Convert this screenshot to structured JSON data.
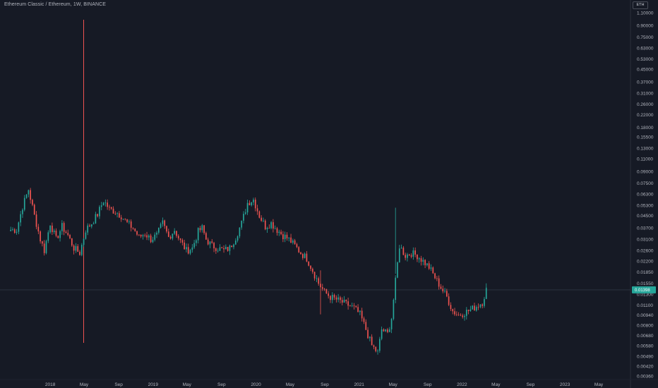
{
  "header": {
    "title": "Ethereum Classic / Ethereum, 1W, BINANCE",
    "currency": "ETH"
  },
  "colors": {
    "background": "#161a25",
    "up": "#26a69a",
    "down": "#ef5350",
    "grid": "#1e2230",
    "text": "#b2b5be"
  },
  "chart_data": {
    "type": "candlestick",
    "title": "Ethereum Classic / Ethereum, 1W, BINANCE",
    "scale": "log",
    "grid": false,
    "ylim": [
      0.0036,
      1.2
    ],
    "y_ticks": [
      "1.10000",
      "0.90000",
      "0.75000",
      "0.63000",
      "0.53000",
      "0.45000",
      "0.37000",
      "0.31000",
      "0.26000",
      "0.22000",
      "0.18000",
      "0.15500",
      "0.13000",
      "0.11000",
      "0.09000",
      "0.07500",
      "0.06300",
      "0.05300",
      "0.04500",
      "0.03700",
      "0.03100",
      "0.02600",
      "0.02200",
      "0.01850",
      "0.01550",
      "0.01300",
      "0.01100",
      "0.00940",
      "0.00800",
      "0.00680",
      "0.00580",
      "0.00490",
      "0.00420",
      "0.00360"
    ],
    "x_ticks": [
      "2018",
      "May",
      "Sep",
      "2019",
      "May",
      "Sep",
      "2020",
      "May",
      "Sep",
      "2021",
      "May",
      "Sep",
      "2022",
      "May",
      "Sep",
      "2023",
      "May"
    ],
    "x_range": [
      "2017-08-01",
      "2023-07-20"
    ],
    "last_price": 0.01398,
    "anchors": [
      [
        "2017-08-14",
        0.036
      ],
      [
        "2017-09-04",
        0.036
      ],
      [
        "2017-09-25",
        0.052
      ],
      [
        "2017-10-16",
        0.068
      ],
      [
        "2017-11-06",
        0.045
      ],
      [
        "2017-11-27",
        0.031
      ],
      [
        "2017-12-11",
        0.026
      ],
      [
        "2018-01-01",
        0.04
      ],
      [
        "2018-01-22",
        0.031
      ],
      [
        "2018-02-12",
        0.038
      ],
      [
        "2018-03-05",
        0.033
      ],
      [
        "2018-03-26",
        0.027
      ],
      [
        "2018-04-16",
        0.025
      ],
      [
        "2018-05-07",
        0.036
      ],
      [
        "2018-05-28",
        0.04
      ],
      [
        "2018-06-18",
        0.046
      ],
      [
        "2018-07-09",
        0.057
      ],
      [
        "2018-07-30",
        0.05
      ],
      [
        "2018-08-20",
        0.048
      ],
      [
        "2018-09-10",
        0.045
      ],
      [
        "2018-10-01",
        0.04
      ],
      [
        "2018-10-22",
        0.037
      ],
      [
        "2018-11-12",
        0.032
      ],
      [
        "2018-12-03",
        0.034
      ],
      [
        "2018-12-24",
        0.031
      ],
      [
        "2019-01-14",
        0.033
      ],
      [
        "2019-02-04",
        0.04
      ],
      [
        "2019-02-25",
        0.032
      ],
      [
        "2019-03-18",
        0.036
      ],
      [
        "2019-04-08",
        0.03
      ],
      [
        "2019-04-29",
        0.026
      ],
      [
        "2019-05-20",
        0.027
      ],
      [
        "2019-06-10",
        0.035
      ],
      [
        "2019-06-24",
        0.037
      ],
      [
        "2019-07-08",
        0.031
      ],
      [
        "2019-07-29",
        0.028
      ],
      [
        "2019-08-19",
        0.027
      ],
      [
        "2019-09-09",
        0.026
      ],
      [
        "2019-09-30",
        0.027
      ],
      [
        "2019-10-21",
        0.032
      ],
      [
        "2019-11-11",
        0.04
      ],
      [
        "2019-12-02",
        0.055
      ],
      [
        "2019-12-23",
        0.058
      ],
      [
        "2020-01-13",
        0.045
      ],
      [
        "2020-02-03",
        0.038
      ],
      [
        "2020-02-24",
        0.04
      ],
      [
        "2020-03-16",
        0.036
      ],
      [
        "2020-04-06",
        0.033
      ],
      [
        "2020-04-27",
        0.031
      ],
      [
        "2020-05-18",
        0.028
      ],
      [
        "2020-06-08",
        0.025
      ],
      [
        "2020-06-29",
        0.023
      ],
      [
        "2020-07-20",
        0.019
      ],
      [
        "2020-08-10",
        0.0155
      ],
      [
        "2020-08-31",
        0.0135
      ],
      [
        "2020-09-21",
        0.0125
      ],
      [
        "2020-10-12",
        0.012
      ],
      [
        "2020-11-02",
        0.0115
      ],
      [
        "2020-11-23",
        0.011
      ],
      [
        "2020-12-14",
        0.0105
      ],
      [
        "2021-01-04",
        0.0095
      ],
      [
        "2021-01-25",
        0.0075
      ],
      [
        "2021-02-15",
        0.0058
      ],
      [
        "2021-03-08",
        0.0052
      ],
      [
        "2021-03-22",
        0.0075
      ],
      [
        "2021-04-12",
        0.007
      ],
      [
        "2021-04-26",
        0.009
      ],
      [
        "2021-05-10",
        0.016
      ],
      [
        "2021-05-24",
        0.028
      ],
      [
        "2021-06-14",
        0.024
      ],
      [
        "2021-07-05",
        0.025
      ],
      [
        "2021-07-26",
        0.024
      ],
      [
        "2021-08-16",
        0.022
      ],
      [
        "2021-09-06",
        0.02
      ],
      [
        "2021-09-27",
        0.017
      ],
      [
        "2021-10-18",
        0.0145
      ],
      [
        "2021-11-08",
        0.0125
      ],
      [
        "2021-11-29",
        0.01
      ],
      [
        "2021-12-20",
        0.0094
      ],
      [
        "2022-01-10",
        0.0098
      ],
      [
        "2022-01-31",
        0.0102
      ],
      [
        "2022-02-21",
        0.0108
      ],
      [
        "2022-03-14",
        0.0115
      ],
      [
        "2022-03-28",
        0.014
      ]
    ]
  }
}
